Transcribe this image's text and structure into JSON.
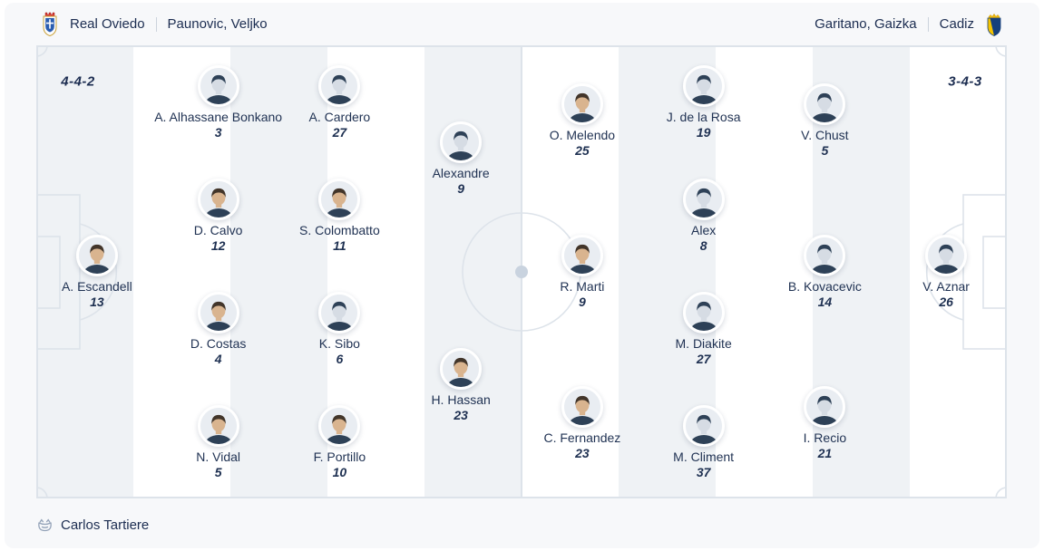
{
  "header": {
    "home_team": "Real Oviedo",
    "home_coach": "Paunovic, Veljko",
    "away_coach": "Garitano, Gaizka",
    "away_team": "Cadiz",
    "divider": "|"
  },
  "venue": {
    "label": "Carlos Tartiere"
  },
  "lineups": {
    "home": {
      "team": "Real Oviedo",
      "formation": "4-4-2",
      "columns": [
        [
          {
            "name": "A. Escandell",
            "number": "13",
            "photo": true
          }
        ],
        [
          {
            "name": "A. Alhassane Bonkano",
            "number": "3",
            "photo": false
          },
          {
            "name": "D. Calvo",
            "number": "12",
            "photo": true
          },
          {
            "name": "D. Costas",
            "number": "4",
            "photo": true
          },
          {
            "name": "N. Vidal",
            "number": "5",
            "photo": true
          }
        ],
        [
          {
            "name": "A. Cardero",
            "number": "27",
            "photo": false
          },
          {
            "name": "S. Colombatto",
            "number": "11",
            "photo": true
          },
          {
            "name": "K. Sibo",
            "number": "6",
            "photo": false
          },
          {
            "name": "F. Portillo",
            "number": "10",
            "photo": true
          }
        ],
        [
          {
            "name": "Alexandre",
            "number": "9",
            "photo": false
          },
          {
            "name": "H. Hassan",
            "number": "23",
            "photo": true
          }
        ]
      ]
    },
    "away": {
      "team": "Cadiz",
      "formation": "3-4-3",
      "columns": [
        [
          {
            "name": "O. Melendo",
            "number": "25",
            "photo": true
          },
          {
            "name": "R. Marti",
            "number": "9",
            "photo": true
          },
          {
            "name": "C. Fernandez",
            "number": "23",
            "photo": true
          }
        ],
        [
          {
            "name": "J. de la Rosa",
            "number": "19",
            "photo": false
          },
          {
            "name": "Alex",
            "number": "8",
            "photo": false
          },
          {
            "name": "M. Diakite",
            "number": "27",
            "photo": false
          },
          {
            "name": "M. Climent",
            "number": "37",
            "photo": false
          }
        ],
        [
          {
            "name": "V. Chust",
            "number": "5",
            "photo": false
          },
          {
            "name": "B. Kovacevic",
            "number": "14",
            "photo": false
          },
          {
            "name": "I. Recio",
            "number": "21",
            "photo": false
          }
        ],
        [
          {
            "name": "V. Aznar",
            "number": "26",
            "photo": false
          }
        ]
      ]
    }
  },
  "icons": {
    "home_crest": "real-oviedo-crest",
    "away_crest": "cadiz-crest",
    "venue_icon": "stadium-icon"
  },
  "colors": {
    "text_navy": "#1b2c50",
    "card_background": "#f7f8fa",
    "stripe_gray": "#eff2f5",
    "stripe_white": "#ffffff",
    "pitch_line": "#dde3ea",
    "center_dot": "#c9d3df",
    "avatar_silhouette": "#2e4157",
    "oviedo_blue": "#2a5db0",
    "cadiz_yellow": "#f5c400",
    "cadiz_blue": "#16407c"
  }
}
